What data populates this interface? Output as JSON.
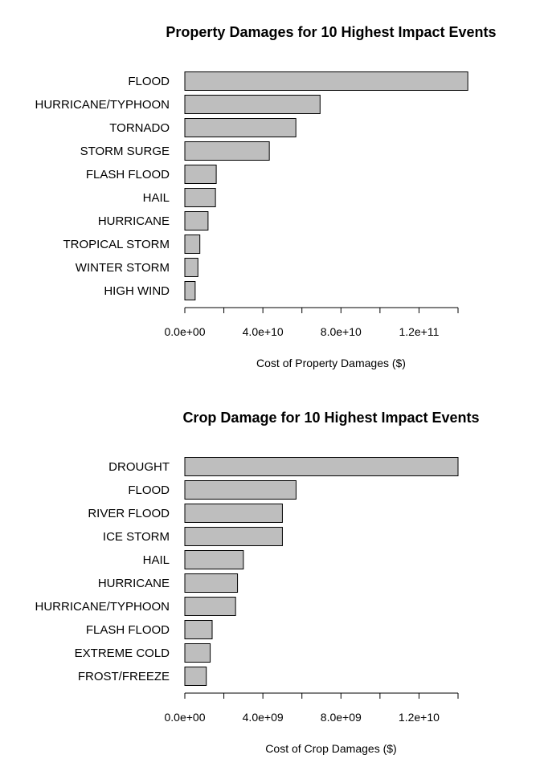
{
  "chart_data": [
    {
      "type": "bar",
      "orientation": "horizontal",
      "title": "Property Damages for 10 Highest Impact Events",
      "xlabel": "Cost of Property Damages ($)",
      "categories": [
        "FLOOD",
        "HURRICANE/TYPHOON",
        "TORNADO",
        "STORM SURGE",
        "FLASH FLOOD",
        "HAIL",
        "HURRICANE",
        "TROPICAL STORM",
        "WINTER STORM",
        "HIGH WIND"
      ],
      "values": [
        145000000000,
        69300000000,
        56900000000,
        43300000000,
        16100000000,
        15700000000,
        11900000000,
        7700000000,
        6700000000,
        5300000000
      ],
      "xlim": [
        0,
        140000000000
      ],
      "ticks": [
        0,
        20000000000,
        40000000000,
        60000000000,
        80000000000,
        100000000000,
        120000000000,
        140000000000
      ],
      "tick_labels": [
        "0.0e+00",
        "",
        "4.0e+10",
        "",
        "8.0e+10",
        "",
        "1.2e+11",
        ""
      ],
      "bar_color": "#bebebe",
      "grid": false
    },
    {
      "type": "bar",
      "orientation": "horizontal",
      "title": "Crop Damage for 10 Highest Impact Events",
      "xlabel": "Cost of Crop Damages ($)",
      "categories": [
        "DROUGHT",
        "FLOOD",
        "RIVER FLOOD",
        "ICE STORM",
        "HAIL",
        "HURRICANE",
        "HURRICANE/TYPHOON",
        "FLASH FLOOD",
        "EXTREME COLD",
        "FROST/FREEZE"
      ],
      "values": [
        14000000000,
        5700000000,
        5000000000,
        5000000000,
        3000000000,
        2700000000,
        2600000000,
        1400000000,
        1300000000,
        1100000000
      ],
      "xlim": [
        0,
        14000000000
      ],
      "ticks": [
        0,
        2000000000,
        4000000000,
        6000000000,
        8000000000,
        10000000000,
        12000000000,
        14000000000
      ],
      "tick_labels": [
        "0.0e+00",
        "",
        "4.0e+09",
        "",
        "8.0e+09",
        "",
        "1.2e+10",
        ""
      ],
      "bar_color": "#bebebe",
      "grid": false
    }
  ]
}
